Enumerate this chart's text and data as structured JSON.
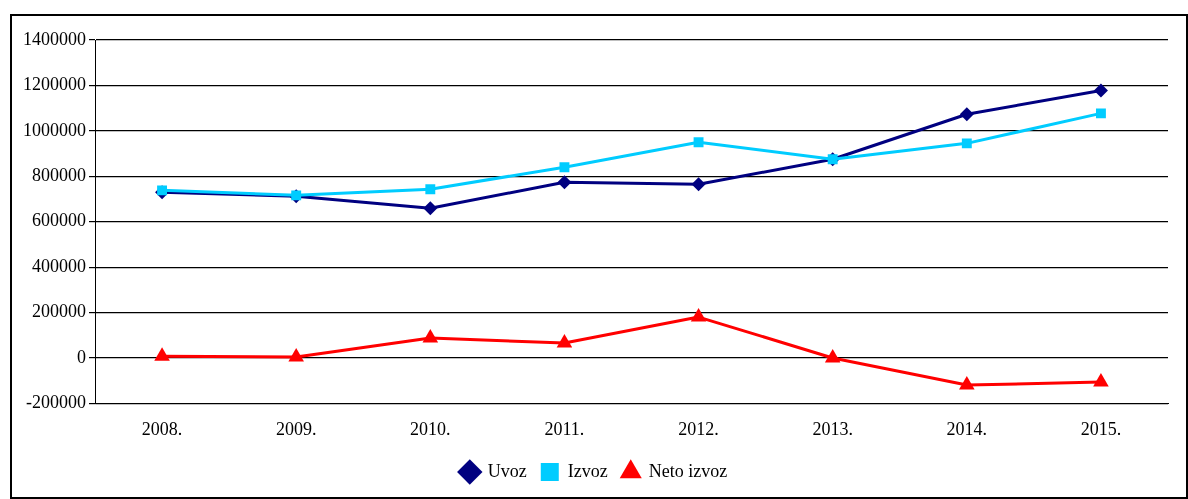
{
  "chart_data": {
    "type": "line",
    "categories": [
      "2008.",
      "2009.",
      "2010.",
      "2011.",
      "2012.",
      "2013.",
      "2014.",
      "2015."
    ],
    "series": [
      {
        "name": "Uvoz",
        "color": "#000080",
        "marker": "diamond",
        "values": [
          730000,
          712000,
          659000,
          774000,
          765000,
          875000,
          1073000,
          1178000
        ]
      },
      {
        "name": "Izvoz",
        "color": "#00ccff",
        "marker": "square",
        "values": [
          738000,
          716000,
          743000,
          840000,
          950000,
          875000,
          945000,
          1077000
        ]
      },
      {
        "name": "Neto izvoz",
        "color": "#ff0000",
        "marker": "triangle",
        "values": [
          8000,
          4000,
          88000,
          66000,
          180000,
          0,
          -119000,
          -106000
        ]
      }
    ],
    "ylim": [
      -200000,
      1400000
    ],
    "yticks": [
      -200000,
      0,
      200000,
      400000,
      600000,
      800000,
      1000000,
      1200000,
      1400000
    ],
    "grid": "y",
    "legend": "bottom"
  }
}
